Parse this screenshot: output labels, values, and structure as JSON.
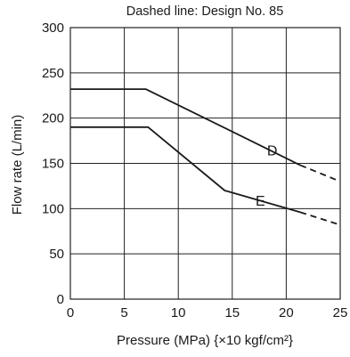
{
  "chart_data": {
    "type": "line",
    "title": "Dashed line: Design No. 85",
    "xlabel": "Pressure (MPa) {×10 kgf/cm²}",
    "ylabel": "Flow rate (L/min)",
    "xlim": [
      0,
      25
    ],
    "ylim": [
      0,
      300
    ],
    "xticks": [
      0,
      5,
      10,
      15,
      20,
      25
    ],
    "yticks": [
      0,
      50,
      100,
      150,
      200,
      250,
      300
    ],
    "xtick_labels": [
      "0",
      "5",
      "10",
      "15",
      "20",
      "25"
    ],
    "ytick_labels": [
      "0",
      "50",
      "100",
      "150",
      "200",
      "250",
      "300"
    ],
    "grid": true,
    "series": [
      {
        "name": "D",
        "label_position": [
          18.7,
          165
        ],
        "x": [
          0,
          7,
          21.3
        ],
        "y": [
          232,
          232,
          148
        ],
        "dashed_x": [
          21.3,
          25
        ],
        "dashed_y": [
          148,
          130
        ]
      },
      {
        "name": "E",
        "label_position": [
          17.6,
          109
        ],
        "x": [
          0,
          7.2,
          14.3,
          21.3
        ],
        "y": [
          190,
          190,
          120,
          96
        ],
        "dashed_x": [
          21.3,
          25
        ],
        "dashed_y": [
          96,
          82
        ]
      }
    ]
  }
}
